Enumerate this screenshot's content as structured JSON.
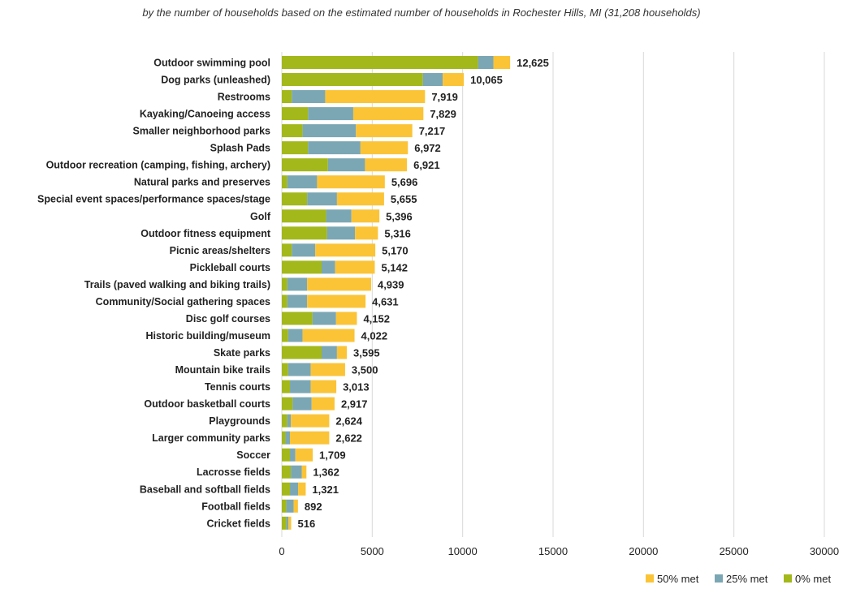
{
  "chart_data": {
    "type": "bar",
    "orientation": "horizontal",
    "stacked": true,
    "title": "",
    "subtitle": "by the number of households based on the estimated number of households in Rochester Hills, MI (31,208 households)",
    "xlabel": "",
    "ylabel": "",
    "xlim": [
      0,
      30000
    ],
    "xticks": [
      0,
      5000,
      10000,
      15000,
      20000,
      25000,
      30000
    ],
    "xtick_labels": [
      "0",
      "5000",
      "10000",
      "15000",
      "20000",
      "25000",
      "30000"
    ],
    "grid": "vertical",
    "legend_position": "bottom-right",
    "categories": [
      "Outdoor swimming pool",
      "Dog parks (unleashed)",
      "Restrooms",
      "Kayaking/Canoeing access",
      "Smaller neighborhood parks",
      "Splash Pads",
      "Outdoor recreation (camping, fishing, archery)",
      "Natural parks and preserves",
      "Special event spaces/performance spaces/stage",
      "Golf",
      "Outdoor fitness equipment",
      "Picnic areas/shelters",
      "Pickleball courts",
      "Trails (paved walking and biking trails)",
      "Community/Social gathering spaces",
      "Disc golf courses",
      "Historic building/museum",
      "Skate parks",
      "Mountain bike trails",
      "Tennis courts",
      "Outdoor basketball courts",
      "Playgrounds",
      "Larger community parks",
      "Soccer",
      "Lacrosse fields",
      "Baseball and softball fields",
      "Football fields",
      "Cricket fields"
    ],
    "totals": [
      12625,
      10065,
      7919,
      7829,
      7217,
      6972,
      6921,
      5696,
      5655,
      5396,
      5316,
      5170,
      5142,
      4939,
      4631,
      4152,
      4022,
      3595,
      3500,
      3013,
      2917,
      2624,
      2622,
      1709,
      1362,
      1321,
      892,
      516
    ],
    "total_labels": [
      "12,625",
      "10,065",
      "7,919",
      "7,829",
      "7,217",
      "6,972",
      "6,921",
      "5,696",
      "5,655",
      "5,396",
      "5,316",
      "5,170",
      "5,142",
      "4,939",
      "4,631",
      "4,152",
      "4,022",
      "3,595",
      "3,500",
      "3,013",
      "2,917",
      "2,624",
      "2,622",
      "1,709",
      "1,362",
      "1,321",
      "892",
      "516"
    ],
    "series": [
      {
        "name": "0% met",
        "color": "#a3b81a",
        "values": [
          10850,
          7800,
          550,
          1450,
          1150,
          1450,
          2550,
          300,
          1400,
          2450,
          2500,
          550,
          2200,
          300,
          300,
          1700,
          350,
          2200,
          350,
          450,
          600,
          300,
          200,
          450,
          500,
          450,
          250,
          250
        ]
      },
      {
        "name": "25% met",
        "color": "#7ba7b4",
        "values": [
          850,
          1100,
          1850,
          2500,
          2950,
          2900,
          2050,
          1650,
          1650,
          1400,
          1550,
          1300,
          750,
          1100,
          1100,
          1300,
          800,
          850,
          1250,
          1150,
          1050,
          200,
          250,
          300,
          600,
          450,
          400,
          120
        ]
      },
      {
        "name": "50% met",
        "color": "#fbc436",
        "values": [
          925,
          1165,
          5519,
          3879,
          3117,
          2622,
          2321,
          3746,
          2605,
          1546,
          1266,
          3320,
          2192,
          3539,
          3231,
          1152,
          2872,
          545,
          1900,
          1413,
          1267,
          2124,
          2172,
          959,
          262,
          421,
          242,
          146
        ]
      }
    ]
  }
}
